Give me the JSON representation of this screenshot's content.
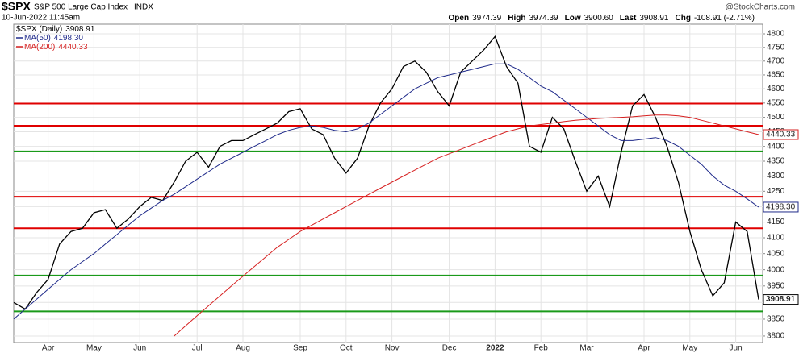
{
  "header": {
    "symbol": "$SPX",
    "name": "S&P 500 Large Cap Index",
    "exchange": "INDX",
    "date": "10-Jun-2022 11:45am",
    "source": "@StockCharts.com",
    "quote": [
      {
        "label": "Open",
        "value": "3974.39"
      },
      {
        "label": "High",
        "value": "3974.39"
      },
      {
        "label": "Low",
        "value": "3900.60"
      },
      {
        "label": "Last",
        "value": "3908.91"
      },
      {
        "label": "Chg",
        "value": "-108.91 (-2.71%)"
      }
    ]
  },
  "chart_data": {
    "type": "line",
    "log": true,
    "grid": true,
    "categories": [
      null,
      null,
      null,
      "Apr",
      null,
      null,
      null,
      "May",
      null,
      null,
      null,
      "Jun",
      null,
      null,
      null,
      null,
      "Jul",
      null,
      null,
      null,
      "Aug",
      null,
      null,
      null,
      null,
      "Sep",
      null,
      null,
      null,
      "Oct",
      null,
      null,
      null,
      "Nov",
      null,
      null,
      null,
      null,
      "Dec",
      null,
      null,
      null,
      "2022",
      null,
      null,
      null,
      "Feb",
      null,
      null,
      null,
      "Mar",
      null,
      null,
      null,
      null,
      "Apr",
      null,
      null,
      null,
      "May",
      null,
      null,
      null,
      "Jun",
      null,
      null
    ],
    "ylim": [
      3781,
      4836
    ],
    "yticks": [
      3800,
      3850,
      3900,
      3950,
      4000,
      4050,
      4100,
      4150,
      4200,
      4250,
      4300,
      4350,
      4400,
      4450,
      4500,
      4550,
      4600,
      4650,
      4700,
      4750,
      4800
    ],
    "levels": [
      {
        "value": 4548,
        "color": "#e00000"
      },
      {
        "value": 4471,
        "color": "#e00000"
      },
      {
        "value": 4383,
        "color": "#1a9a1a"
      },
      {
        "value": 4232,
        "color": "#e00000"
      },
      {
        "value": 4130,
        "color": "#e00000"
      },
      {
        "value": 3982,
        "color": "#1a9a1a"
      },
      {
        "value": 3873,
        "color": "#1a9a1a"
      }
    ],
    "series": [
      {
        "name": "$SPX (Daily)",
        "color": "#000000",
        "values": [
          3900,
          3880,
          3930,
          3970,
          4080,
          4120,
          4130,
          4180,
          4190,
          4130,
          4160,
          4200,
          4230,
          4220,
          4280,
          4350,
          4380,
          4330,
          4400,
          4420,
          4420,
          4440,
          4460,
          4480,
          4520,
          4530,
          4460,
          4440,
          4360,
          4310,
          4360,
          4470,
          4550,
          4600,
          4680,
          4700,
          4660,
          4590,
          4540,
          4660,
          4700,
          4740,
          4790,
          4680,
          4620,
          4400,
          4380,
          4500,
          4460,
          4350,
          4250,
          4300,
          4200,
          4380,
          4540,
          4580,
          4500,
          4400,
          4280,
          4120,
          4000,
          3920,
          3960,
          4150,
          4120,
          3908.91
        ]
      },
      {
        "name": "MA(50)",
        "color": "#1f2a8a",
        "values": [
          3850,
          3880,
          3910,
          3940,
          3970,
          4000,
          4025,
          4050,
          4080,
          4110,
          4140,
          4170,
          4195,
          4220,
          4240,
          4265,
          4290,
          4315,
          4340,
          4360,
          4380,
          4400,
          4420,
          4440,
          4455,
          4465,
          4470,
          4465,
          4455,
          4450,
          4460,
          4480,
          4510,
          4540,
          4570,
          4600,
          4620,
          4640,
          4650,
          4660,
          4670,
          4680,
          4690,
          4690,
          4670,
          4640,
          4610,
          4590,
          4560,
          4530,
          4500,
          4470,
          4440,
          4420,
          4420,
          4425,
          4430,
          4420,
          4400,
          4370,
          4340,
          4300,
          4270,
          4250,
          4225,
          4198.3
        ],
        "value_labels": [
          null,
          null,
          null,
          null,
          null,
          null,
          null,
          null,
          null,
          null,
          null,
          null,
          null,
          null,
          null,
          null,
          null,
          null,
          null,
          null,
          null,
          null,
          null,
          null,
          null,
          null,
          null,
          null,
          null,
          null,
          null,
          null,
          null,
          null,
          null,
          null,
          null,
          null,
          null,
          null,
          null,
          null,
          null,
          null,
          null,
          null,
          null,
          null,
          null,
          null,
          null,
          null,
          null,
          null,
          null,
          null,
          null,
          null,
          null,
          null,
          null,
          null,
          null,
          null,
          null,
          "4198.30"
        ]
      },
      {
        "name": "MA(200)",
        "color": "#d62020",
        "values": [
          null,
          null,
          null,
          null,
          null,
          null,
          null,
          null,
          null,
          null,
          null,
          null,
          null,
          null,
          3800,
          3830,
          3860,
          3890,
          3920,
          3950,
          3980,
          4010,
          4040,
          4070,
          4095,
          4120,
          4140,
          4160,
          4180,
          4200,
          4220,
          4240,
          4260,
          4280,
          4300,
          4320,
          4340,
          4360,
          4375,
          4390,
          4405,
          4420,
          4435,
          4450,
          4460,
          4470,
          4475,
          4480,
          4485,
          4490,
          4493,
          4496,
          4498,
          4500,
          4502,
          4505,
          4508,
          4508,
          4505,
          4500,
          4490,
          4480,
          4470,
          4460,
          4450,
          4440.33
        ]
      }
    ]
  }
}
